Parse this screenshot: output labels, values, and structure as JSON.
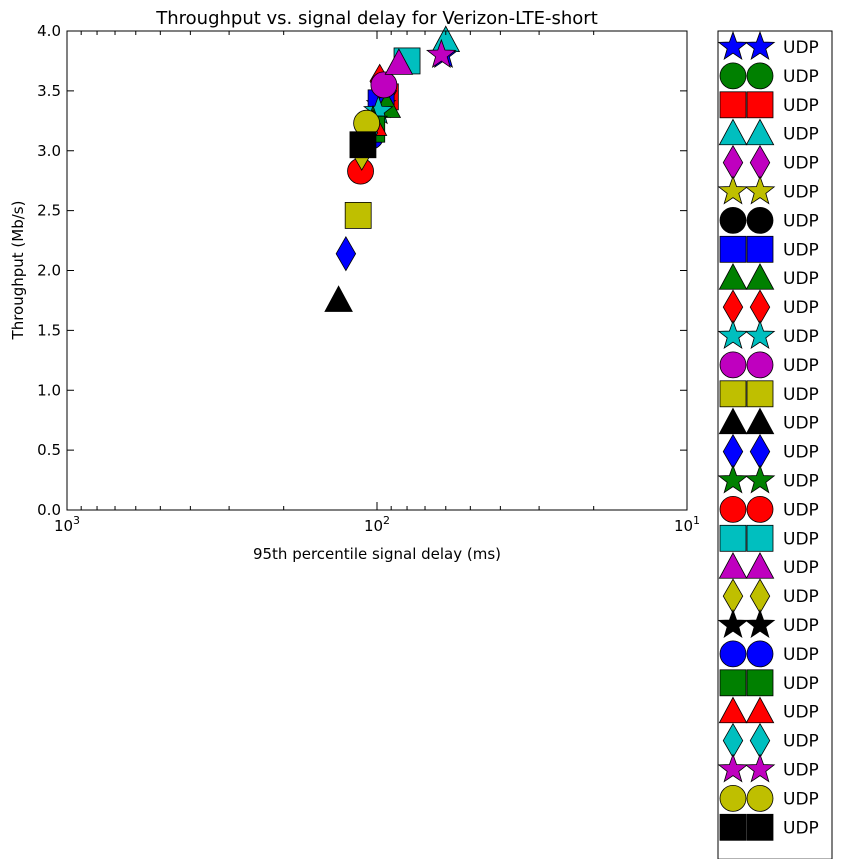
{
  "chart_data": {
    "type": "scatter",
    "title": "Throughput vs. signal delay for Verizon-LTE-short",
    "xlabel": "95th percentile signal delay (ms)",
    "ylabel": "Throughput (Mb/s)",
    "xscale": "log",
    "x_inverted": true,
    "xlim": [
      1000,
      10
    ],
    "ylim": [
      0,
      4
    ],
    "grid": false,
    "legend_placement": "outside-right",
    "x_ticks": [
      {
        "value": 1000,
        "base": "10",
        "exp": "3"
      },
      {
        "value": 100,
        "base": "10",
        "exp": "2"
      },
      {
        "value": 10,
        "base": "10",
        "exp": "1"
      }
    ],
    "y_ticks": [
      "0.0",
      "0.5",
      "1.0",
      "1.5",
      "2.0",
      "2.5",
      "3.0",
      "3.5",
      "4.0"
    ],
    "series": [
      {
        "name": "UDP",
        "marker": "star",
        "color": "#0000ff",
        "x": 61,
        "y": 3.8
      },
      {
        "name": "UDP",
        "marker": "circle",
        "color": "#008000",
        "x": 96,
        "y": 3.42
      },
      {
        "name": "UDP",
        "marker": "square",
        "color": "#ff0000",
        "x": 94,
        "y": 3.45
      },
      {
        "name": "UDP",
        "marker": "triangle",
        "color": "#00bfbf",
        "x": 60,
        "y": 3.92
      },
      {
        "name": "UDP",
        "marker": "diamond",
        "color": "#bf00bf",
        "x": 93,
        "y": 3.5
      },
      {
        "name": "UDP",
        "marker": "star",
        "color": "#bfbf00",
        "x": 97,
        "y": 3.38
      },
      {
        "name": "UDP",
        "marker": "circle",
        "color": "#000000",
        "x": 104,
        "y": 3.15
      },
      {
        "name": "UDP",
        "marker": "square",
        "color": "#0000ff",
        "x": 97,
        "y": 3.4
      },
      {
        "name": "UDP",
        "marker": "triangle",
        "color": "#008000",
        "x": 93,
        "y": 3.37
      },
      {
        "name": "UDP",
        "marker": "diamond",
        "color": "#ff0000",
        "x": 98,
        "y": 3.58
      },
      {
        "name": "UDP",
        "marker": "star",
        "color": "#00bfbf",
        "x": 99,
        "y": 3.33
      },
      {
        "name": "UDP",
        "marker": "circle",
        "color": "#bf00bf",
        "x": 95,
        "y": 3.55
      },
      {
        "name": "UDP",
        "marker": "square",
        "color": "#bfbf00",
        "x": 115,
        "y": 2.46
      },
      {
        "name": "UDP",
        "marker": "triangle",
        "color": "#000000",
        "x": 133,
        "y": 1.75
      },
      {
        "name": "UDP",
        "marker": "diamond",
        "color": "#0000ff",
        "x": 126,
        "y": 2.14
      },
      {
        "name": "UDP",
        "marker": "star",
        "color": "#008000",
        "x": 103,
        "y": 3.25
      },
      {
        "name": "UDP",
        "marker": "circle",
        "color": "#ff0000",
        "x": 113,
        "y": 2.83
      },
      {
        "name": "UDP",
        "marker": "square",
        "color": "#00bfbf",
        "x": 80,
        "y": 3.75
      },
      {
        "name": "UDP",
        "marker": "triangle",
        "color": "#bf00bf",
        "x": 85,
        "y": 3.73
      },
      {
        "name": "UDP",
        "marker": "diamond",
        "color": "#bfbf00",
        "x": 112,
        "y": 2.98
      },
      {
        "name": "UDP",
        "marker": "star",
        "color": "#000000",
        "x": 108,
        "y": 3.1
      },
      {
        "name": "UDP",
        "marker": "circle",
        "color": "#0000ff",
        "x": 105,
        "y": 3.12
      },
      {
        "name": "UDP",
        "marker": "square",
        "color": "#008000",
        "x": 104,
        "y": 3.18
      },
      {
        "name": "UDP",
        "marker": "triangle",
        "color": "#ff0000",
        "x": 103,
        "y": 3.22
      },
      {
        "name": "UDP",
        "marker": "diamond",
        "color": "#00bfbf",
        "x": 107,
        "y": 3.15
      },
      {
        "name": "UDP",
        "marker": "star",
        "color": "#bf00bf",
        "x": 62,
        "y": 3.8
      },
      {
        "name": "UDP",
        "marker": "circle",
        "color": "#bfbf00",
        "x": 108,
        "y": 3.23
      },
      {
        "name": "UDP",
        "marker": "square",
        "color": "#000000",
        "x": 111,
        "y": 3.05
      }
    ]
  }
}
